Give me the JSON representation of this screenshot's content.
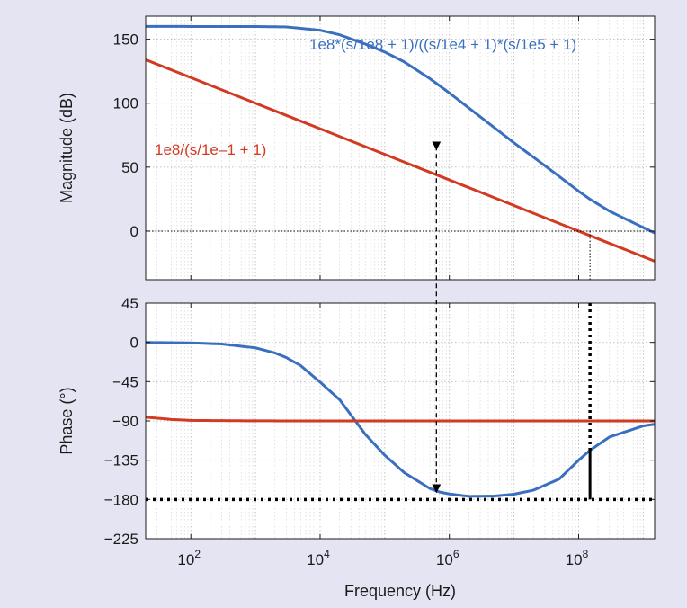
{
  "colors": {
    "background": "#e4e4f2",
    "blue_series": "#3a6fc0",
    "red_series": "#d23a22",
    "grid": "#c8c8c8",
    "marker": "#000000"
  },
  "chart_data": [
    {
      "type": "line",
      "panel": "magnitude",
      "ylabel": "Magnitude (dB)",
      "xlabel": "",
      "x_scale": "log",
      "xlim": [
        20,
        1500000000.0
      ],
      "ylim": [
        -38,
        168
      ],
      "yticks": [
        150,
        100,
        50,
        0
      ],
      "ytick_labels": [
        "150",
        "100",
        "50",
        "0"
      ],
      "grid": true,
      "series": [
        {
          "name": "1e8*(s/1e8 + 1)/((s/1e4 + 1)*(s/1e5 + 1)",
          "color": "#3a6fc0",
          "x": [
            20,
            1000,
            3000,
            10000,
            20000,
            50000,
            100000,
            200000,
            500000,
            1000000,
            3000000,
            10000000,
            30000000,
            100000000,
            150000000,
            300000000,
            1000000000,
            1500000000
          ],
          "y": [
            160,
            159.9,
            159.6,
            157,
            153.5,
            146.2,
            140,
            132.3,
            119.2,
            108,
            89.4,
            69,
            51.2,
            31.2,
            24.9,
            15.6,
            2.8,
            -1.5
          ]
        },
        {
          "name": "1e8/(s/1e–1 + 1)",
          "color": "#d23a22",
          "x": [
            20,
            100,
            1000,
            10000,
            100000,
            1000000,
            10000000,
            100000000,
            1000000000,
            1500000000
          ],
          "y": [
            134,
            120,
            100,
            80,
            60,
            40,
            20,
            0,
            -20,
            -23.5
          ]
        }
      ],
      "annotations": [
        {
          "text": "1e8*(s/1e8 + 1)/((s/1e4 + 1)*(s/1e5 + 1)",
          "color": "#3a6fc0"
        },
        {
          "text": "1e8/(s/1e–1 + 1)",
          "color": "#d23a22"
        }
      ],
      "markers": {
        "zero_db_line": 0,
        "crossover_frequency": 150000000,
        "dashed_arrow": {
          "x": 630000,
          "from_y": 75,
          "to_y": -180
        }
      }
    },
    {
      "type": "line",
      "panel": "phase",
      "ylabel": "Phase (°)",
      "xlabel": "Frequency (Hz)",
      "x_scale": "log",
      "xlim": [
        20,
        1500000000.0
      ],
      "ylim": [
        -225,
        45
      ],
      "yticks": [
        45,
        0,
        -45,
        -90,
        -135,
        -180,
        -225
      ],
      "ytick_labels": [
        "45",
        "0",
        "−45",
        "−90",
        "−135",
        "−180",
        "−225"
      ],
      "xticks": [
        100,
        10000,
        1000000,
        100000000
      ],
      "xtick_labels": [
        {
          "base": "10",
          "exp": "2"
        },
        {
          "base": "10",
          "exp": "4"
        },
        {
          "base": "10",
          "exp": "6"
        },
        {
          "base": "10",
          "exp": "8"
        }
      ],
      "grid": true,
      "series": [
        {
          "name": "blue",
          "color": "#3a6fc0",
          "x": [
            20,
            100,
            300,
            1000,
            2000,
            3000,
            5000,
            10000,
            20000,
            50000,
            100000,
            200000,
            500000,
            700000,
            1000000,
            2000000,
            5000000,
            10000000,
            20000000,
            50000000,
            100000000,
            150000000,
            300000000,
            1000000000,
            1500000000
          ],
          "y": [
            -0.1,
            -0.6,
            -1.9,
            -6.3,
            -12.1,
            -17.4,
            -26.6,
            -45.6,
            -65.6,
            -105.3,
            -129.3,
            -149.2,
            -167.5,
            -171.4,
            -173.7,
            -176.4,
            -176.1,
            -174.0,
            -169.4,
            -156.6,
            -135,
            -123.7,
            -108.4,
            -95.7,
            -93.8
          ]
        },
        {
          "name": "red",
          "color": "#d23a22",
          "x": [
            20,
            50,
            100,
            1000,
            10000,
            1500000000
          ],
          "y": [
            -85.7,
            -88.3,
            -89.4,
            -89.9,
            -90,
            -90
          ]
        }
      ],
      "markers": {
        "minus_180_line": -180,
        "crossover_frequency": 150000000,
        "phase_at_crossover": -124
      }
    }
  ]
}
